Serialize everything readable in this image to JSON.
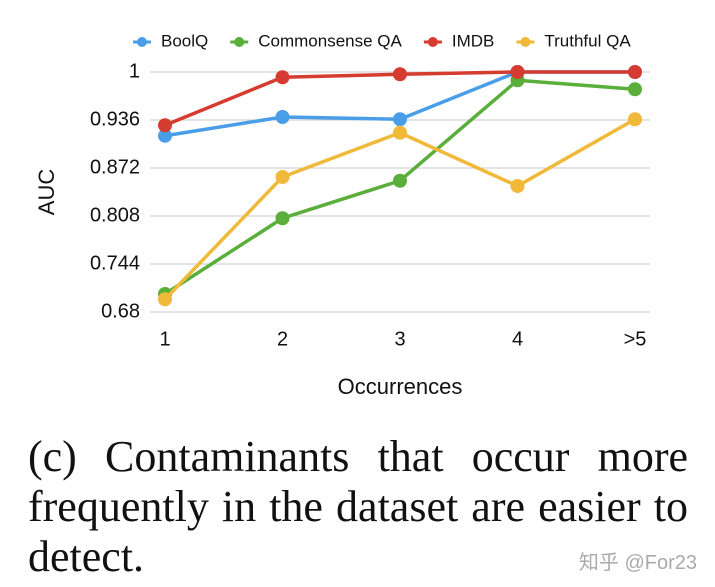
{
  "chart_data": {
    "type": "line",
    "xlabel": "Occurrences",
    "ylabel": "AUC",
    "categories": [
      "1",
      "2",
      "3",
      "4",
      ">5"
    ],
    "series": [
      {
        "name": "BoolQ",
        "color": "#4a9ee8",
        "values": [
          0.915,
          0.94,
          0.937,
          1.0,
          1.0
        ]
      },
      {
        "name": "Commonsense QA",
        "color": "#5aae3a",
        "values": [
          0.704,
          0.805,
          0.855,
          0.989,
          0.977
        ]
      },
      {
        "name": "IMDB",
        "color": "#d63b2f",
        "values": [
          0.929,
          0.993,
          0.997,
          1.0,
          1.0
        ]
      },
      {
        "name": "Truthful QA",
        "color": "#f0b93a",
        "values": [
          0.697,
          0.86,
          0.919,
          0.848,
          0.937
        ]
      }
    ],
    "ylim": [
      0.68,
      1
    ],
    "yticks": [
      0.68,
      0.744,
      0.808,
      0.872,
      0.936,
      1
    ],
    "grid": true,
    "legend": "top",
    "caption": "(c) Contaminants that occur more frequently in the dataset are easier to detect.",
    "watermark": "知乎 @For23"
  }
}
